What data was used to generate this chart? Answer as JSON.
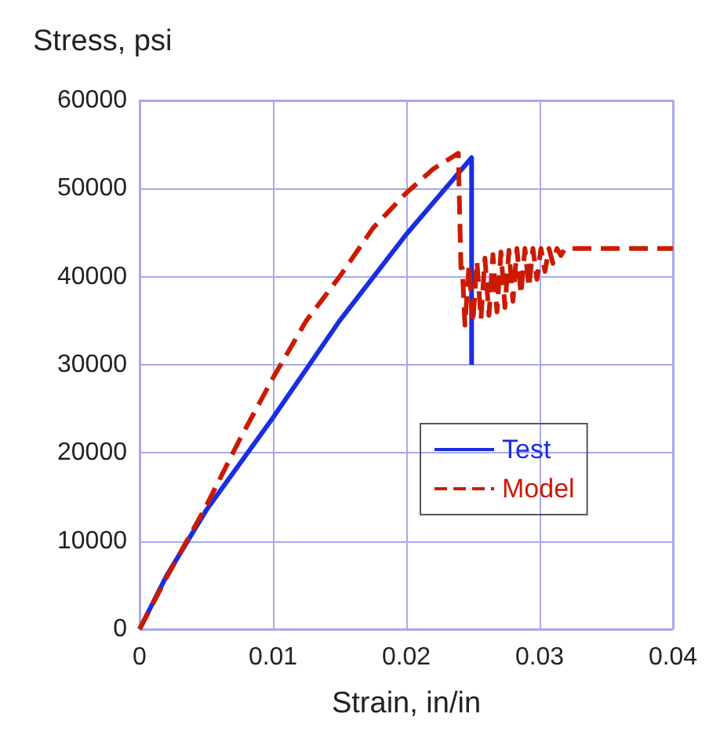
{
  "chart_data": {
    "type": "line",
    "xlabel": "Strain, in/in",
    "ylabel": "Stress, psi",
    "xlim": [
      0,
      0.04
    ],
    "xticks": [
      0,
      0.01,
      0.02,
      0.03,
      0.04
    ],
    "ylim": [
      0,
      60000
    ],
    "yticks": [
      0,
      10000,
      20000,
      30000,
      40000,
      50000,
      60000
    ],
    "grid": true,
    "legend": "right",
    "marker": "none",
    "series": [
      {
        "name": "Test",
        "color": "#1a2ee0",
        "line_style": "solid",
        "x": [
          0,
          0.002,
          0.005,
          0.01,
          0.015,
          0.02,
          0.0249,
          0.0249
        ],
        "values": [
          0,
          6000,
          13500,
          24000,
          35000,
          44800,
          53500,
          30000
        ]
      },
      {
        "name": "Model",
        "color": "#cc1a00",
        "line_style": "dashed",
        "x": [
          0,
          0.002,
          0.005,
          0.0075,
          0.01,
          0.0125,
          0.015,
          0.0175,
          0.02,
          0.022,
          0.0239,
          0.0241,
          0.0242,
          0.0244,
          0.0247,
          0.025,
          0.0253,
          0.0256,
          0.0259,
          0.0262,
          0.0265,
          0.0268,
          0.0271,
          0.0274,
          0.0277,
          0.028,
          0.0283,
          0.0286,
          0.0289,
          0.0292,
          0.0295,
          0.0298,
          0.0301,
          0.0304,
          0.0307,
          0.031,
          0.0313,
          0.0316,
          0.0319,
          0.0322,
          0.04
        ],
        "values": [
          0,
          5800,
          14000,
          21500,
          28500,
          35000,
          40000,
          45500,
          49500,
          52200,
          54000,
          41000,
          41000,
          34500,
          41300,
          34800,
          41700,
          35200,
          42100,
          35600,
          42500,
          36000,
          42800,
          36500,
          43000,
          37200,
          43200,
          38000,
          43200,
          38800,
          43200,
          39700,
          43200,
          40600,
          43200,
          41500,
          43200,
          42400,
          43200,
          43200,
          43200
        ]
      }
    ]
  }
}
